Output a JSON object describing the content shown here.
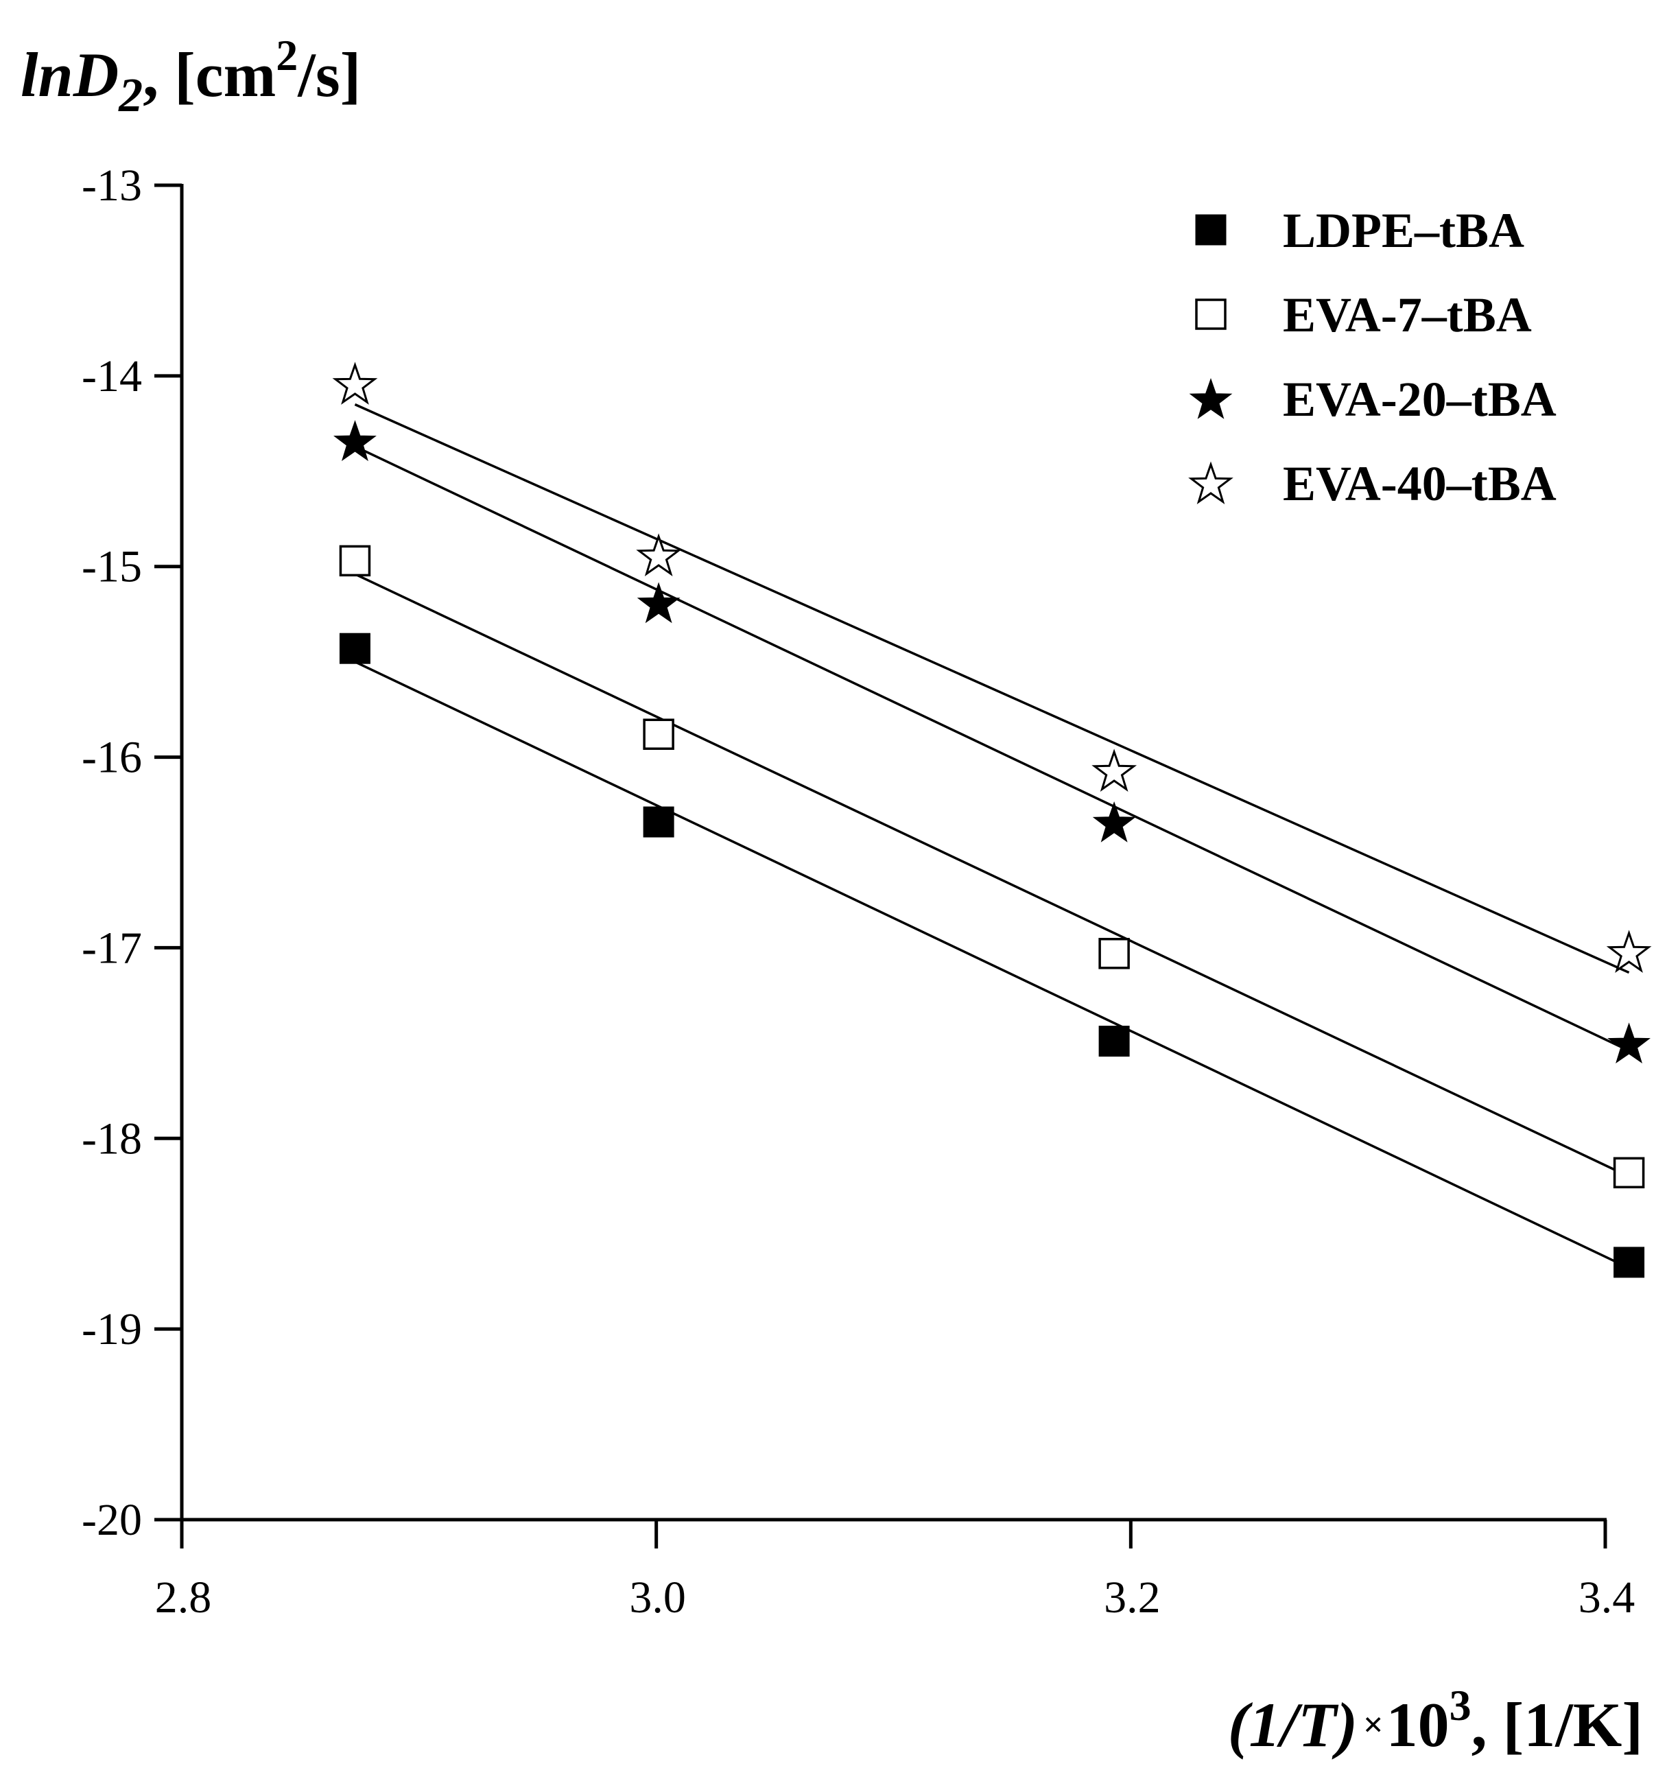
{
  "chart_data": {
    "type": "scatter",
    "title": "",
    "ylabel": {
      "var": "lnD",
      "sub": "2",
      "unit_pre": ", [cm",
      "unit_sup": "2",
      "unit_post": "/s]"
    },
    "xlabel": {
      "var": "(1/T)",
      "times": "×",
      "base": "10",
      "sup": "3",
      "unit": ", [1/K]"
    },
    "xlim": [
      2.8,
      3.4
    ],
    "ylim": [
      -20,
      -13
    ],
    "xticks": [
      2.8,
      3.0,
      3.2,
      3.4
    ],
    "xtick_labels": [
      "2.8",
      "3.0",
      "3.2",
      "3.4"
    ],
    "yticks": [
      -13,
      -14,
      -15,
      -16,
      -17,
      -18,
      -19,
      -20
    ],
    "ytick_labels": [
      "-13",
      "-14",
      "-15",
      "-16",
      "-17",
      "-18",
      "-19",
      "-20"
    ],
    "x": [
      2.873,
      3.001,
      3.193,
      3.41
    ],
    "series": [
      {
        "name": "LDPE–tBA",
        "marker": "square-filled",
        "values": [
          -15.43,
          -16.34,
          -17.49,
          -18.65
        ],
        "fit": [
          [
            2.873,
            -15.5
          ],
          [
            3.41,
            -18.68
          ]
        ]
      },
      {
        "name": "EVA-7–tBA",
        "marker": "square-open",
        "values": [
          -14.97,
          -15.88,
          -17.03,
          -18.18
        ],
        "fit": [
          [
            2.873,
            -15.04
          ],
          [
            3.41,
            -18.2
          ]
        ]
      },
      {
        "name": "EVA-20–tBA",
        "marker": "star-filled",
        "values": [
          -14.34,
          -15.19,
          -16.34,
          -17.5
        ],
        "fit": [
          [
            2.873,
            -14.37
          ],
          [
            3.41,
            -17.54
          ]
        ]
      },
      {
        "name": "EVA-40–tBA",
        "marker": "star-open",
        "values": [
          -14.04,
          -14.94,
          -16.07,
          -17.02
        ],
        "fit": [
          [
            2.873,
            -14.15
          ],
          [
            3.41,
            -17.13
          ]
        ]
      }
    ],
    "legend_position": "top-right",
    "grid": false
  }
}
